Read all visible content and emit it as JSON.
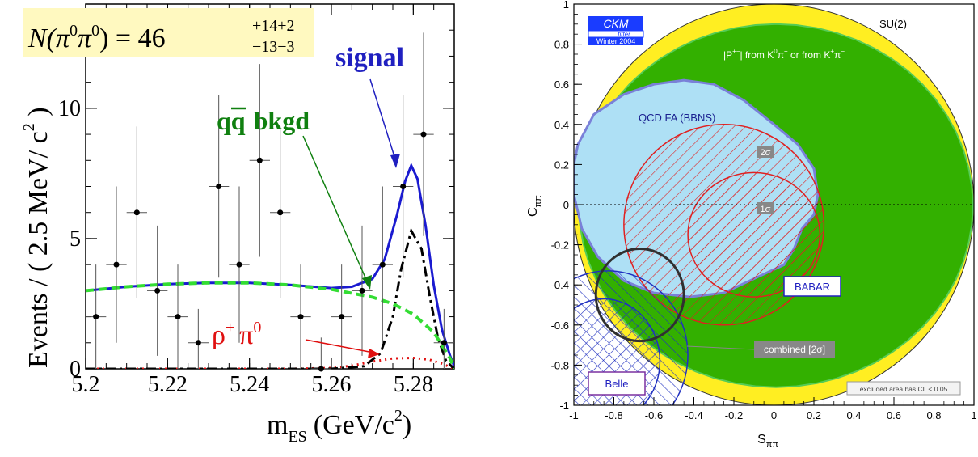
{
  "chart_data": [
    {
      "type": "scatter",
      "title": "",
      "xlabel": "m",
      "xlabel_sub": "ES",
      "xlabel_unit": "(GeV/c",
      "xlabel_sup": "2",
      "xlabel_close": ")",
      "ylabel": "Events / ( 2.5 MeV/ c",
      "ylabel_sup": "2",
      "ylabel_close": " )",
      "xlim": [
        5.2,
        5.29
      ],
      "ylim": [
        0,
        14
      ],
      "xticks": [
        "5.2",
        "5.22",
        "5.24",
        "5.26",
        "5.28"
      ],
      "yticks": [
        "0",
        "5",
        "10"
      ],
      "fit_result": {
        "prefix": "N(",
        "particle": "π",
        "sup": "0",
        "mid": "π",
        "sup2": "0",
        "close": ") = 46",
        "upper": "+14+2",
        "lower": "−13−3"
      },
      "labels": {
        "signal": "signal",
        "qq_bkgd_q1": "q",
        "qq_bkgd_q2": "q",
        "qq_bkgd_rest": "bkgd",
        "rho_pi": "ρ",
        "rho_sup": "+",
        "pi": "π",
        "pi_sup": "0"
      },
      "points": [
        {
          "x": 5.2025,
          "y": 2,
          "err": 2.0
        },
        {
          "x": 5.2075,
          "y": 4,
          "err": 3.0
        },
        {
          "x": 5.2125,
          "y": 6,
          "err": 3.3
        },
        {
          "x": 5.2175,
          "y": 3,
          "err": 2.5
        },
        {
          "x": 5.2225,
          "y": 2,
          "err": 2.0
        },
        {
          "x": 5.2275,
          "y": 1,
          "err": 1.3
        },
        {
          "x": 5.2325,
          "y": 7,
          "err": 3.5
        },
        {
          "x": 5.2375,
          "y": 4,
          "err": 3.0
        },
        {
          "x": 5.2425,
          "y": 8,
          "err": 3.7
        },
        {
          "x": 5.2475,
          "y": 6,
          "err": 3.3
        },
        {
          "x": 5.2525,
          "y": 2,
          "err": 2.0
        },
        {
          "x": 5.2575,
          "y": 0,
          "err": 1.2
        },
        {
          "x": 5.2625,
          "y": 2,
          "err": 2.0
        },
        {
          "x": 5.2675,
          "y": 3,
          "err": 2.5
        },
        {
          "x": 5.2725,
          "y": 4,
          "err": 3.0
        },
        {
          "x": 5.2775,
          "y": 7,
          "err": 3.5
        },
        {
          "x": 5.2825,
          "y": 9,
          "err": 3.9
        },
        {
          "x": 5.2875,
          "y": 1,
          "err": 1.3
        }
      ],
      "series": [
        {
          "style": "solid-blue",
          "x": [
            5.2,
            5.21,
            5.22,
            5.23,
            5.24,
            5.25,
            5.26,
            5.265,
            5.27,
            5.273,
            5.276,
            5.278,
            5.2795,
            5.281,
            5.283,
            5.285,
            5.287,
            5.289,
            5.29
          ],
          "y": [
            3.0,
            3.15,
            3.25,
            3.3,
            3.3,
            3.22,
            3.1,
            3.15,
            3.45,
            4.2,
            5.9,
            7.2,
            7.8,
            7.3,
            5.5,
            3.2,
            1.5,
            0.5,
            0.1
          ]
        },
        {
          "style": "dashed-green",
          "x": [
            5.2,
            5.21,
            5.22,
            5.23,
            5.24,
            5.25,
            5.26,
            5.27,
            5.275,
            5.28,
            5.285,
            5.289,
            5.29
          ],
          "y": [
            3.0,
            3.15,
            3.25,
            3.3,
            3.3,
            3.22,
            3.05,
            2.75,
            2.5,
            2.1,
            1.4,
            0.4,
            0.0
          ]
        },
        {
          "style": "dashdot-black",
          "x": [
            5.2,
            5.26,
            5.268,
            5.272,
            5.275,
            5.277,
            5.2795,
            5.282,
            5.284,
            5.286,
            5.288,
            5.29
          ],
          "y": [
            0,
            0,
            0.1,
            0.6,
            2.0,
            3.8,
            5.3,
            4.6,
            2.8,
            1.2,
            0.3,
            0.0
          ]
        },
        {
          "style": "dotted-red",
          "x": [
            5.2,
            5.25,
            5.26,
            5.265,
            5.27,
            5.275,
            5.28,
            5.284,
            5.287,
            5.29
          ],
          "y": [
            0,
            0,
            0.03,
            0.12,
            0.28,
            0.4,
            0.42,
            0.35,
            0.2,
            0.0
          ]
        }
      ]
    },
    {
      "type": "area",
      "xlabel": "S",
      "xlabel_sub": "ππ",
      "ylabel": "C",
      "ylabel_sub": "ππ",
      "xlim": [
        -1,
        1
      ],
      "ylim": [
        -1,
        1
      ],
      "xticks": [
        "-1",
        "-0.8",
        "-0.6",
        "-0.4",
        "-0.2",
        "0",
        "0.2",
        "0.4",
        "0.6",
        "0.8",
        "1"
      ],
      "yticks": [
        "-1",
        "-0.8",
        "-0.6",
        "-0.4",
        "-0.2",
        "0",
        "0.2",
        "0.4",
        "0.6",
        "0.8",
        "1"
      ],
      "logo": {
        "main": "CKM",
        "sub": "fitter",
        "season": "Winter 2004"
      },
      "labels": {
        "su2": "SU(2)",
        "p_constraint_a": "|P",
        "p_constraint_sup": "+−",
        "p_constraint_b": "| from K",
        "p_constraint_sup2": "0",
        "p_constraint_c": "π",
        "p_constraint_sup3": "+",
        "p_constraint_d": " or from K",
        "p_constraint_sup4": "+",
        "p_constraint_e": "π",
        "p_constraint_sup5": "−",
        "qcdfa": "QCD FA (BBNS)",
        "sigma2": "2σ",
        "sigma1": "1σ",
        "babar": "BABAR",
        "belle": "Belle",
        "combined": "combined [2σ]",
        "excluded": "excluded area has CL < 0.05"
      },
      "colors": {
        "yellow": "#ffee22",
        "green": "#33b000",
        "lightblue": "#aee0f5",
        "babar": "#e02020",
        "belle": "#2030c0",
        "combined": "#303030"
      },
      "regions": {
        "babar_2sigma": {
          "cx": -0.25,
          "cy": -0.1,
          "rx": 0.5,
          "ry": 0.5
        },
        "babar_1sigma": {
          "cx": -0.1,
          "cy": -0.15,
          "rx": 0.33,
          "ry": 0.31
        },
        "belle_2sigma": {
          "cx": -0.83,
          "cy": -0.75,
          "rx": 0.4,
          "ry": 0.42
        },
        "belle_1sigma": {
          "cx": -0.85,
          "cy": -0.78,
          "rx": 0.28,
          "ry": 0.31
        },
        "combined": {
          "cx": -0.67,
          "cy": -0.45,
          "rx": 0.22,
          "ry": 0.23
        }
      }
    }
  ]
}
